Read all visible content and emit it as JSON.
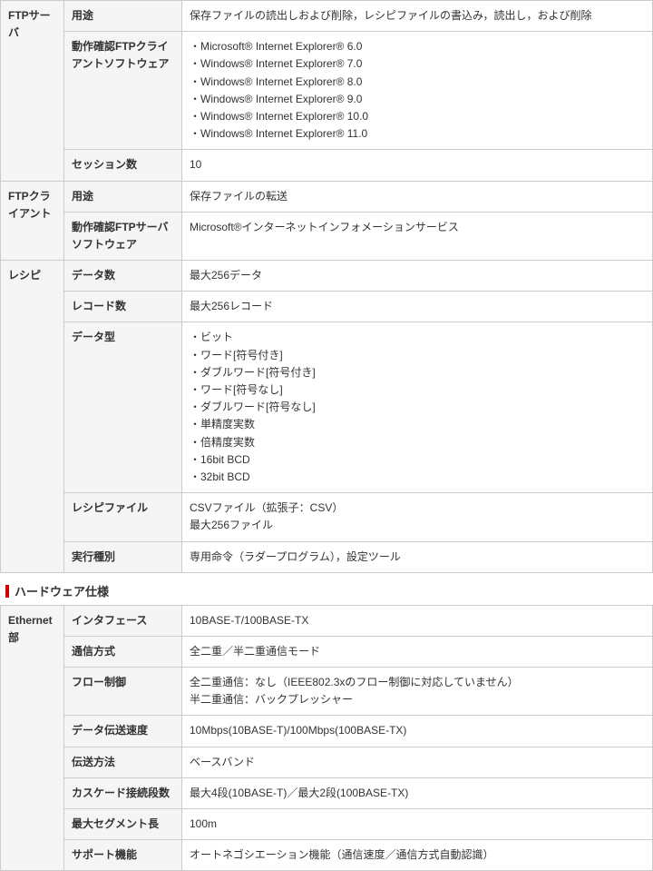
{
  "section1": {
    "rows": [
      {
        "group": "FTPサーバ",
        "group_rowspan": 3,
        "label": "用途",
        "value": "保存ファイルの読出しおよび削除，レシピファイルの書込み，読出し，および削除"
      },
      {
        "label": "動作確認FTPクライアントソフトウェア",
        "lines": [
          "・Microsoft® Internet Explorer® 6.0",
          "・Windows® Internet Explorer® 7.0",
          "・Windows® Internet Explorer® 8.0",
          "・Windows® Internet Explorer® 9.0",
          "・Windows® Internet Explorer® 10.0",
          "・Windows® Internet Explorer® 11.0"
        ]
      },
      {
        "label": "セッション数",
        "value": "10"
      },
      {
        "group": "FTPクライアント",
        "group_rowspan": 2,
        "label": "用途",
        "value": "保存ファイルの転送"
      },
      {
        "label": "動作確認FTPサーバソフトウェア",
        "value": "Microsoft®インターネットインフォメーションサービス"
      },
      {
        "group": "レシピ",
        "group_rowspan": 5,
        "label": "データ数",
        "value": "最大256データ"
      },
      {
        "label": "レコード数",
        "value": "最大256レコード"
      },
      {
        "label": "データ型",
        "lines": [
          "・ビット",
          "・ワード[符号付き]",
          "・ダブルワード[符号付き]",
          "・ワード[符号なし]",
          "・ダブルワード[符号なし]",
          "・単精度実数",
          "・倍精度実数",
          "・16bit BCD",
          "・32bit BCD"
        ]
      },
      {
        "label": "レシピファイル",
        "lines": [
          "CSVファイル（拡張子：CSV）",
          "最大256ファイル"
        ]
      },
      {
        "label": "実行種別",
        "value": "専用命令（ラダープログラム），設定ツール"
      }
    ]
  },
  "section2_title": "ハードウェア仕様",
  "section2": {
    "rows": [
      {
        "group": "Ethernet部",
        "group_rowspan": 8,
        "label": "インタフェース",
        "value": "10BASE-T/100BASE-TX"
      },
      {
        "label": "通信方式",
        "value": "全二重／半二重通信モード"
      },
      {
        "label": "フロー制御",
        "lines": [
          "全二重通信：なし（IEEE802.3xのフロー制御に対応していません）",
          "半二重通信：バックプレッシャー"
        ]
      },
      {
        "label": "データ伝送速度",
        "value": "10Mbps(10BASE-T)/100Mbps(100BASE-TX)"
      },
      {
        "label": "伝送方法",
        "value": "ベースバンド"
      },
      {
        "label": "カスケード接続段数",
        "value": "最大4段(10BASE-T)／最大2段(100BASE-TX)"
      },
      {
        "label": "最大セグメント長",
        "value": "100m"
      },
      {
        "label": "サポート機能",
        "value": "オートネゴシエーション機能（通信速度／通信方式自動認識）"
      }
    ]
  }
}
